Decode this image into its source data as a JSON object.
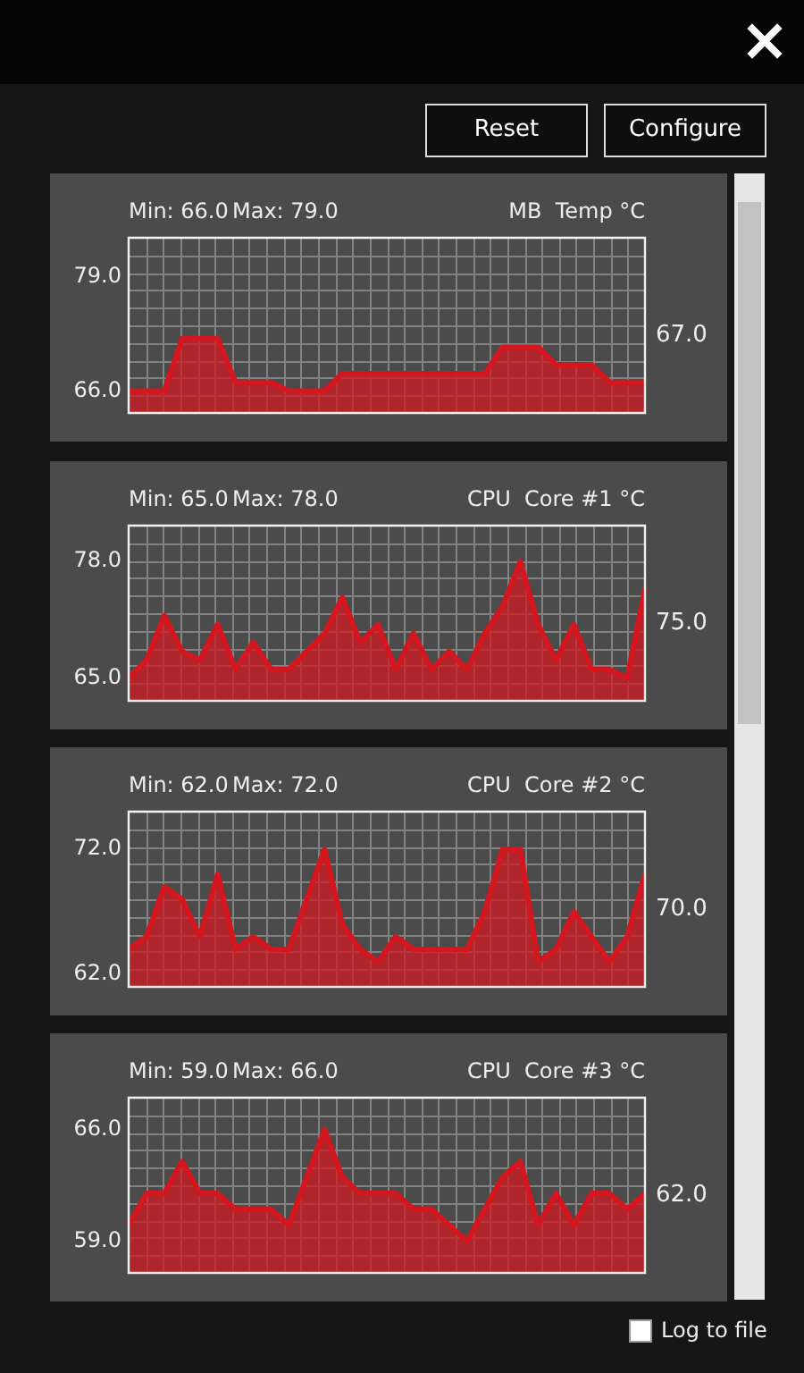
{
  "chart_data": [
    {
      "type": "area",
      "title": "MB  Temp °C",
      "annotations": [
        "Min: 66.0",
        "Max: 79.0",
        "67.0"
      ],
      "categories": [
        null,
        null,
        null,
        null,
        null,
        null,
        null,
        null,
        null,
        null,
        null,
        null,
        null,
        null,
        null,
        null,
        null,
        null,
        null,
        null,
        null,
        null,
        null,
        null,
        null,
        null,
        null,
        null,
        null,
        null
      ],
      "color": "#d4161e",
      "values": [
        66,
        66,
        66,
        72,
        72,
        72,
        67,
        67,
        67,
        66,
        66,
        66,
        68,
        68,
        68,
        68,
        68,
        68,
        68,
        68,
        68,
        71,
        71,
        71,
        69,
        69,
        69,
        67,
        67,
        67
      ],
      "ylim": [
        63.5,
        83.5
      ],
      "yticks": [
        {
          "value": 66,
          "label": "66.0"
        },
        {
          "value": 79,
          "label": "79.0"
        }
      ],
      "grid": true,
      "marker": "none",
      "tick_labels": "y"
    },
    {
      "type": "area",
      "title": "CPU  Core #1 °C",
      "annotations": [
        "Min: 65.0",
        "Max: 78.0",
        "75.0"
      ],
      "categories": [
        null,
        null,
        null,
        null,
        null,
        null,
        null,
        null,
        null,
        null,
        null,
        null,
        null,
        null,
        null,
        null,
        null,
        null,
        null,
        null,
        null,
        null,
        null,
        null,
        null,
        null,
        null,
        null,
        null,
        null
      ],
      "color": "#d4161e",
      "values": [
        65,
        67,
        72,
        68,
        67,
        71,
        66,
        69,
        66,
        66,
        68,
        70,
        74,
        69,
        71,
        66,
        70,
        66,
        68,
        66,
        70,
        73,
        78,
        71,
        67,
        71,
        66,
        66,
        65,
        75
      ],
      "ylim": [
        62.5,
        82
      ],
      "yticks": [
        {
          "value": 65,
          "label": "65.0"
        },
        {
          "value": 78,
          "label": "78.0"
        }
      ],
      "grid": true,
      "marker": "none",
      "tick_labels": "y"
    },
    {
      "type": "area",
      "title": "CPU  Core #2 °C",
      "annotations": [
        "Min: 62.0",
        "Max: 72.0",
        "70.0"
      ],
      "categories": [
        null,
        null,
        null,
        null,
        null,
        null,
        null,
        null,
        null,
        null,
        null,
        null,
        null,
        null,
        null,
        null,
        null,
        null,
        null,
        null,
        null,
        null,
        null,
        null,
        null,
        null,
        null,
        null,
        null,
        null
      ],
      "color": "#d4161e",
      "values": [
        64,
        65,
        69,
        68,
        65,
        70,
        64,
        65,
        64,
        64,
        68,
        72,
        66,
        64,
        63,
        65,
        64,
        64,
        64,
        64,
        67,
        72,
        72,
        63,
        64,
        67,
        65,
        63,
        65,
        70
      ],
      "ylim": [
        61,
        75
      ],
      "yticks": [
        {
          "value": 62,
          "label": "62.0"
        },
        {
          "value": 72,
          "label": "72.0"
        }
      ],
      "grid": true,
      "marker": "none",
      "tick_labels": "y"
    },
    {
      "type": "area",
      "title": "CPU  Core #3 °C",
      "annotations": [
        "Min: 59.0",
        "Max: 66.0",
        "62.0"
      ],
      "categories": [
        null,
        null,
        null,
        null,
        null,
        null,
        null,
        null,
        null,
        null,
        null,
        null,
        null,
        null,
        null,
        null,
        null,
        null,
        null,
        null,
        null,
        null,
        null,
        null,
        null,
        null,
        null,
        null,
        null,
        null
      ],
      "color": "#d4161e",
      "values": [
        60,
        62,
        62,
        64,
        62,
        62,
        61,
        61,
        61,
        60,
        63,
        66,
        63,
        62,
        62,
        62,
        61,
        61,
        60,
        59,
        61,
        63,
        64,
        60,
        62,
        60,
        62,
        62,
        61,
        62
      ],
      "ylim": [
        57,
        68
      ],
      "yticks": [
        {
          "value": 59,
          "label": "59.0"
        },
        {
          "value": 66,
          "label": "66.0"
        }
      ],
      "grid": true,
      "marker": "none",
      "tick_labels": "y"
    },
    {
      "type": "other",
      "annotations": [
        "Reset",
        "Configure",
        "Log to file"
      ]
    }
  ]
}
